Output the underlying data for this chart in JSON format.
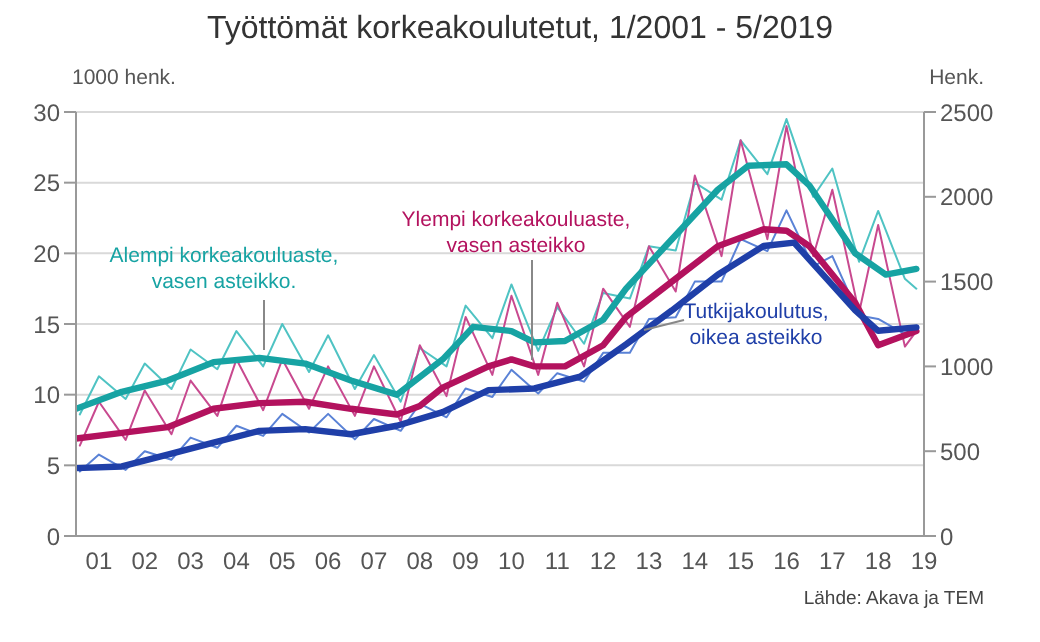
{
  "chart_data": {
    "type": "line",
    "title": "Työttömät korkeakoulutetut, 1/2001 - 5/2019",
    "ylabel": "1000 henk.",
    "y2label": "Henk.",
    "annotations": [
      "Lähde: Akava ja TEM"
    ],
    "xlim": [
      "2001-01",
      "2019-07"
    ],
    "xticks": [
      {
        "value": "2001-07",
        "label": "01"
      },
      {
        "value": "2002-07",
        "label": "02"
      },
      {
        "value": "2003-07",
        "label": "03"
      },
      {
        "value": "2004-07",
        "label": "04"
      },
      {
        "value": "2005-07",
        "label": "05"
      },
      {
        "value": "2006-07",
        "label": "06"
      },
      {
        "value": "2007-07",
        "label": "07"
      },
      {
        "value": "2008-07",
        "label": "08"
      },
      {
        "value": "2009-07",
        "label": "09"
      },
      {
        "value": "2010-07",
        "label": "10"
      },
      {
        "value": "2011-07",
        "label": "11"
      },
      {
        "value": "2012-07",
        "label": "12"
      },
      {
        "value": "2013-07",
        "label": "13"
      },
      {
        "value": "2014-07",
        "label": "14"
      },
      {
        "value": "2015-07",
        "label": "15"
      },
      {
        "value": "2016-07",
        "label": "16"
      },
      {
        "value": "2017-07",
        "label": "17"
      },
      {
        "value": "2018-07",
        "label": "18"
      },
      {
        "value": "2019-07",
        "label": "19"
      }
    ],
    "ylim": [
      0,
      30
    ],
    "yticks": [
      0,
      5,
      10,
      15,
      20,
      25,
      30
    ],
    "y2lim": [
      0,
      2500
    ],
    "y2ticks": [
      0,
      500,
      1000,
      1500,
      2000,
      2500
    ],
    "grid": "y",
    "marker": "none",
    "series": [
      {
        "color": "#4fc3c3",
        "x": [
          "2001-02",
          "2001-07",
          "2002-02",
          "2002-07",
          "2003-02",
          "2003-07",
          "2004-02",
          "2004-07",
          "2005-02",
          "2005-07",
          "2006-02",
          "2006-07",
          "2007-02",
          "2007-07",
          "2008-02",
          "2008-07",
          "2009-02",
          "2009-07",
          "2010-02",
          "2010-07",
          "2011-02",
          "2011-07",
          "2012-02",
          "2012-07",
          "2013-02",
          "2013-07",
          "2014-02",
          "2014-07",
          "2015-02",
          "2015-07",
          "2016-02",
          "2016-07",
          "2017-02",
          "2017-07",
          "2018-02",
          "2018-07",
          "2019-02",
          "2019-05"
        ],
        "values": [
          8.6,
          11.3,
          9.7,
          12.2,
          10.4,
          13.2,
          11.8,
          14.5,
          12.0,
          15.0,
          11.6,
          14.2,
          10.4,
          12.8,
          9.5,
          13.3,
          12.0,
          16.3,
          14.0,
          17.8,
          13.1,
          16.2,
          13.6,
          17.2,
          16.8,
          20.5,
          20.2,
          25.0,
          23.8,
          28.0,
          25.6,
          29.5,
          24.0,
          26.0,
          19.4,
          23.0,
          18.2,
          17.5
        ]
      },
      {
        "color": "#c8498f",
        "x": [
          "2001-02",
          "2001-07",
          "2002-02",
          "2002-07",
          "2003-02",
          "2003-07",
          "2004-02",
          "2004-07",
          "2005-02",
          "2005-07",
          "2006-02",
          "2006-07",
          "2007-02",
          "2007-07",
          "2008-02",
          "2008-07",
          "2009-02",
          "2009-07",
          "2010-02",
          "2010-07",
          "2011-02",
          "2011-07",
          "2012-02",
          "2012-07",
          "2013-02",
          "2013-07",
          "2014-02",
          "2014-07",
          "2015-02",
          "2015-07",
          "2016-02",
          "2016-07",
          "2017-02",
          "2017-07",
          "2018-02",
          "2018-07",
          "2019-02",
          "2019-05"
        ],
        "values": [
          6.4,
          9.5,
          6.8,
          10.3,
          7.2,
          11.0,
          8.5,
          12.5,
          8.9,
          12.5,
          9.0,
          12.0,
          8.5,
          12.0,
          8.1,
          13.5,
          9.9,
          15.5,
          11.4,
          17.0,
          11.4,
          16.5,
          12.0,
          17.5,
          14.8,
          20.5,
          17.3,
          25.5,
          19.8,
          28.0,
          21.0,
          29.0,
          19.8,
          24.5,
          15.8,
          22.0,
          13.4,
          14.5
        ]
      },
      {
        "color": "#5a82d6",
        "axis": "y2",
        "x": [
          "2001-02",
          "2001-07",
          "2002-02",
          "2002-07",
          "2003-02",
          "2003-07",
          "2004-02",
          "2004-07",
          "2005-02",
          "2005-07",
          "2006-02",
          "2006-07",
          "2007-02",
          "2007-07",
          "2008-02",
          "2008-07",
          "2009-02",
          "2009-07",
          "2010-02",
          "2010-07",
          "2011-02",
          "2011-07",
          "2012-02",
          "2012-07",
          "2013-02",
          "2013-07",
          "2014-02",
          "2014-07",
          "2015-02",
          "2015-07",
          "2016-02",
          "2016-07",
          "2017-02",
          "2017-07",
          "2018-02",
          "2018-07",
          "2019-02",
          "2019-05"
        ],
        "values": [
          380,
          480,
          390,
          500,
          450,
          580,
          520,
          650,
          590,
          720,
          610,
          720,
          570,
          690,
          620,
          780,
          700,
          870,
          820,
          980,
          840,
          960,
          910,
          1080,
          1080,
          1280,
          1290,
          1500,
          1500,
          1750,
          1680,
          1920,
          1590,
          1650,
          1300,
          1280,
          1190,
          1240
        ]
      },
      {
        "name": "Alempi korkeakouluaste, vasen asteikko.",
        "color": "#17a3a3",
        "x": [
          "2001-01",
          "2002-01",
          "2003-01",
          "2004-01",
          "2005-01",
          "2006-01",
          "2007-01",
          "2008-01",
          "2009-01",
          "2009-09",
          "2010-07",
          "2011-01",
          "2011-09",
          "2012-07",
          "2013-01",
          "2014-01",
          "2015-01",
          "2015-09",
          "2016-07",
          "2017-01",
          "2018-01",
          "2018-09",
          "2019-05"
        ],
        "values": [
          9.0,
          10.2,
          11.0,
          12.3,
          12.6,
          12.2,
          11.0,
          10.0,
          12.5,
          14.8,
          14.5,
          13.7,
          13.8,
          15.3,
          17.5,
          21.0,
          24.5,
          26.2,
          26.3,
          24.8,
          20.0,
          18.5,
          18.9
        ]
      },
      {
        "name": "Ylempi korkeakouluaste, vasen asteikko",
        "color": "#b3125e",
        "x": [
          "2001-01",
          "2002-01",
          "2003-01",
          "2004-01",
          "2005-01",
          "2006-01",
          "2007-01",
          "2008-01",
          "2008-07",
          "2009-01",
          "2010-01",
          "2010-07",
          "2011-01",
          "2011-09",
          "2012-07",
          "2013-01",
          "2014-01",
          "2015-01",
          "2016-01",
          "2016-07",
          "2017-01",
          "2018-01",
          "2018-07",
          "2019-05"
        ],
        "values": [
          6.9,
          7.3,
          7.7,
          9.0,
          9.4,
          9.5,
          9.0,
          8.6,
          9.2,
          10.5,
          12.0,
          12.5,
          12.0,
          12.0,
          13.5,
          15.5,
          18.0,
          20.5,
          21.7,
          21.6,
          20.5,
          16.5,
          13.5,
          14.5
        ]
      },
      {
        "name": "Tutkijakoulutus, oikea asteikko",
        "color": "#1f3fa8",
        "axis": "y2",
        "x": [
          "2001-01",
          "2002-01",
          "2003-01",
          "2004-01",
          "2005-01",
          "2006-01",
          "2007-01",
          "2008-01",
          "2009-01",
          "2010-01",
          "2011-01",
          "2012-01",
          "2013-01",
          "2014-01",
          "2015-01",
          "2016-01",
          "2016-09",
          "2017-01",
          "2018-01",
          "2018-07",
          "2019-05"
        ],
        "values": [
          400,
          410,
          480,
          550,
          620,
          630,
          600,
          650,
          730,
          860,
          870,
          940,
          1130,
          1330,
          1540,
          1710,
          1730,
          1630,
          1330,
          1210,
          1230
        ]
      }
    ]
  }
}
